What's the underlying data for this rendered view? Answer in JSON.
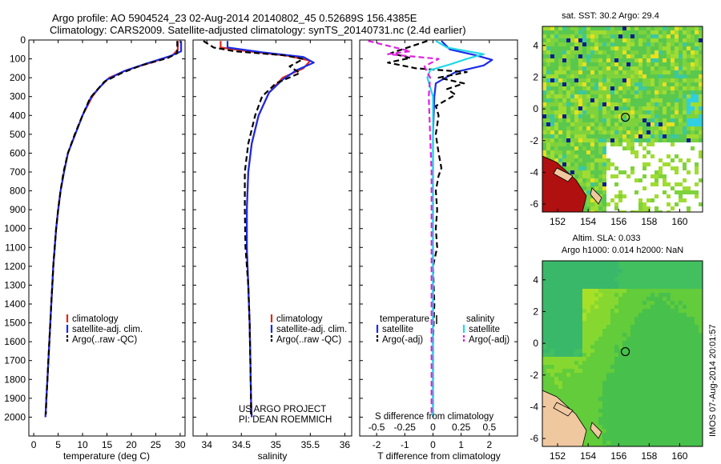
{
  "title": {
    "line1": "Argo profile: AO 5904524_23 02-Aug-2014 20140802_45 0.52689S 156.4385E",
    "line2": "Climatology: CARS2009. Satellite-adjusted climatology: synTS_20140731.nc (2.4d earlier)"
  },
  "credit": {
    "line1": "US ARGO PROJECT",
    "line2": "PI: DEAN ROEMMICH"
  },
  "stamp": "IMOS 07-Aug-2014 20:01:57",
  "colors": {
    "climatology": "#e0281c",
    "satellite": "#1a2ce8",
    "argo": "#000000",
    "sat_salinity": "#22d8e8",
    "argo_salinity": "#e020e0"
  },
  "chart_data": [
    {
      "type": "line",
      "name": "temperature-profile",
      "xlabel": "temperature (deg C)",
      "ylabel": "",
      "xlim": [
        -1,
        31
      ],
      "ylim": [
        2100,
        0
      ],
      "xticks": [
        0,
        5,
        10,
        15,
        20,
        25,
        30
      ],
      "yticks": [
        0,
        100,
        200,
        300,
        400,
        500,
        600,
        700,
        800,
        900,
        1000,
        1100,
        1200,
        1300,
        1400,
        1500,
        1600,
        1700,
        1800,
        1900,
        2000
      ],
      "legend": {
        "placement": "bottom-center",
        "entries": [
          "climatology",
          "satellite-adj. clim.",
          "Argo(..raw -QC)"
        ]
      },
      "series": [
        {
          "name": "climatology",
          "style": "solid",
          "color_key": "climatology",
          "points": [
            [
              29.5,
              5
            ],
            [
              29.5,
              50
            ],
            [
              28.5,
              80
            ],
            [
              24,
              120
            ],
            [
              19,
              160
            ],
            [
              15.5,
              200
            ],
            [
              13.5,
              250
            ],
            [
              12,
              300
            ],
            [
              10,
              400
            ],
            [
              8.5,
              500
            ],
            [
              7,
              600
            ],
            [
              6.2,
              700
            ],
            [
              5.5,
              800
            ],
            [
              5,
              900
            ],
            [
              4.6,
              1000
            ],
            [
              4.3,
              1100
            ],
            [
              4,
              1200
            ],
            [
              3.8,
              1300
            ],
            [
              3.6,
              1400
            ],
            [
              3.4,
              1500
            ],
            [
              3.2,
              1600
            ],
            [
              3.0,
              1700
            ],
            [
              2.8,
              1800
            ],
            [
              2.6,
              1900
            ],
            [
              2.4,
              2000
            ]
          ]
        },
        {
          "name": "satellite-adj. clim.",
          "style": "solid",
          "color_key": "satellite",
          "points": [
            [
              30.2,
              5
            ],
            [
              30.2,
              60
            ],
            [
              28,
              85
            ],
            [
              23,
              125
            ],
            [
              18.5,
              165
            ],
            [
              15,
              210
            ],
            [
              13.2,
              260
            ],
            [
              11.8,
              300
            ],
            [
              10,
              400
            ],
            [
              8.5,
              500
            ],
            [
              7,
              600
            ],
            [
              6.2,
              700
            ],
            [
              5.5,
              800
            ],
            [
              5,
              900
            ],
            [
              4.6,
              1000
            ],
            [
              4.3,
              1100
            ],
            [
              4,
              1200
            ],
            [
              3.8,
              1300
            ],
            [
              3.6,
              1400
            ],
            [
              3.4,
              1500
            ],
            [
              3.2,
              1600
            ],
            [
              3.0,
              1700
            ],
            [
              2.8,
              1800
            ],
            [
              2.6,
              1900
            ],
            [
              2.4,
              2000
            ]
          ]
        },
        {
          "name": "Argo(..raw -QC)",
          "style": "dashed",
          "color_key": "argo",
          "points": [
            [
              29.4,
              5
            ],
            [
              29.4,
              70
            ],
            [
              27.5,
              95
            ],
            [
              22,
              135
            ],
            [
              18,
              175
            ],
            [
              14.5,
              220
            ],
            [
              12.8,
              270
            ],
            [
              11.5,
              310
            ],
            [
              10,
              400
            ],
            [
              8.4,
              500
            ],
            [
              7,
              600
            ],
            [
              6.1,
              700
            ],
            [
              5.5,
              800
            ],
            [
              5,
              900
            ],
            [
              4.6,
              1000
            ],
            [
              4.3,
              1100
            ],
            [
              4,
              1200
            ],
            [
              3.8,
              1300
            ],
            [
              3.6,
              1400
            ],
            [
              3.4,
              1500
            ],
            [
              3.2,
              1600
            ],
            [
              3.0,
              1700
            ],
            [
              2.8,
              1800
            ],
            [
              2.6,
              1900
            ],
            [
              2.5,
              1985
            ]
          ]
        }
      ]
    },
    {
      "type": "line",
      "name": "salinity-profile",
      "xlabel": "salinity",
      "ylabel": "",
      "xlim": [
        33.8,
        36.1
      ],
      "ylim": [
        2100,
        0
      ],
      "xticks": [
        34,
        34.5,
        35,
        35.5,
        36
      ],
      "legend": {
        "placement": "bottom-center",
        "entries": [
          "climatology",
          "satellite-adj. clim.",
          "Argo(..raw -QC)"
        ]
      },
      "series": [
        {
          "name": "climatology",
          "style": "solid",
          "color_key": "climatology",
          "points": [
            [
              34.2,
              5
            ],
            [
              34.2,
              40
            ],
            [
              34.6,
              60
            ],
            [
              35.2,
              85
            ],
            [
              35.5,
              110
            ],
            [
              35.4,
              150
            ],
            [
              35.1,
              200
            ],
            [
              34.9,
              280
            ],
            [
              34.75,
              400
            ],
            [
              34.65,
              550
            ],
            [
              34.6,
              700
            ],
            [
              34.58,
              900
            ],
            [
              34.58,
              1100
            ],
            [
              34.6,
              1300
            ],
            [
              34.62,
              1500
            ],
            [
              34.63,
              1700
            ],
            [
              34.64,
              1900
            ],
            [
              34.65,
              2000
            ]
          ]
        },
        {
          "name": "satellite-adj. clim.",
          "style": "solid",
          "color_key": "satellite",
          "points": [
            [
              34.3,
              5
            ],
            [
              34.3,
              40
            ],
            [
              34.8,
              65
            ],
            [
              35.4,
              90
            ],
            [
              35.55,
              120
            ],
            [
              35.3,
              160
            ],
            [
              35.1,
              210
            ],
            [
              34.9,
              280
            ],
            [
              34.75,
              400
            ],
            [
              34.65,
              550
            ],
            [
              34.6,
              700
            ],
            [
              34.58,
              900
            ],
            [
              34.58,
              1100
            ],
            [
              34.6,
              1300
            ],
            [
              34.62,
              1500
            ],
            [
              34.63,
              1700
            ],
            [
              34.64,
              1900
            ],
            [
              34.65,
              2000
            ]
          ]
        },
        {
          "name": "Argo(..raw -QC)",
          "style": "dashed",
          "color_key": "argo",
          "points": [
            [
              33.95,
              5
            ],
            [
              34.1,
              40
            ],
            [
              34.4,
              60
            ],
            [
              35.1,
              80
            ],
            [
              35.4,
              100
            ],
            [
              35.2,
              140
            ],
            [
              35.35,
              175
            ],
            [
              35.0,
              230
            ],
            [
              34.8,
              300
            ],
            [
              34.7,
              400
            ],
            [
              34.6,
              550
            ],
            [
              34.55,
              700
            ],
            [
              34.55,
              900
            ],
            [
              34.56,
              1100
            ],
            [
              34.6,
              1300
            ],
            [
              34.62,
              1500
            ],
            [
              34.63,
              1700
            ],
            [
              34.64,
              1900
            ],
            [
              34.64,
              1985
            ]
          ]
        }
      ]
    },
    {
      "type": "line",
      "name": "difference-profile",
      "xlabel": "T difference from climatology",
      "xlabel_top": "S difference from climatology",
      "xlim": [
        -2.6,
        3.0
      ],
      "ylim": [
        2100,
        0
      ],
      "xticks": [
        -2,
        -1,
        0,
        1,
        2
      ],
      "xticks_top": [
        "-0.5",
        "-0.25",
        "0",
        "0.25",
        "0.5"
      ],
      "xticks_top_values": [
        -2,
        -1,
        0,
        1,
        2
      ],
      "legend": {
        "placement": "bottom-center",
        "headers": [
          "temperature",
          "salinity"
        ],
        "entries": [
          "satellite",
          "Argo(-adj)",
          "satellite",
          "Argo(-adj)"
        ]
      },
      "series": [
        {
          "name": "satellite",
          "group": "temperature",
          "style": "solid",
          "color_key": "satellite",
          "points": [
            [
              0.3,
              5
            ],
            [
              0.6,
              50
            ],
            [
              1.5,
              80
            ],
            [
              2.1,
              105
            ],
            [
              1.8,
              135
            ],
            [
              0.8,
              170
            ],
            [
              0.1,
              230
            ],
            [
              0.05,
              300
            ],
            [
              0,
              500
            ],
            [
              0,
              800
            ],
            [
              0,
              1200
            ],
            [
              0,
              1600
            ],
            [
              0,
              2000
            ]
          ]
        },
        {
          "name": "Argo(-adj)",
          "group": "temperature",
          "style": "dashed",
          "color_key": "argo",
          "points": [
            [
              -0.2,
              5
            ],
            [
              -1.5,
              70
            ],
            [
              -0.8,
              95
            ],
            [
              -1.6,
              120
            ],
            [
              -0.6,
              150
            ],
            [
              1.2,
              170
            ],
            [
              0.2,
              200
            ],
            [
              1.1,
              230
            ],
            [
              0.5,
              260
            ],
            [
              0.8,
              290
            ],
            [
              0.1,
              350
            ],
            [
              0.2,
              400
            ],
            [
              0.1,
              500
            ],
            [
              0.2,
              600
            ],
            [
              0.3,
              680
            ],
            [
              0.2,
              720
            ],
            [
              0.1,
              800
            ],
            [
              0.15,
              900
            ],
            [
              0.1,
              1000
            ],
            [
              0.15,
              1100
            ],
            [
              0,
              1200
            ],
            [
              0.05,
              1400
            ],
            [
              0,
              1600
            ],
            [
              0,
              1800
            ],
            [
              0,
              1985
            ]
          ]
        },
        {
          "name": "satellite",
          "group": "salinity",
          "style": "solid",
          "color_key": "sat_salinity",
          "points": [
            [
              0.1,
              5
            ],
            [
              0.5,
              40
            ],
            [
              1.8,
              75
            ],
            [
              1.2,
              100
            ],
            [
              0.6,
              130
            ],
            [
              -0.1,
              160
            ],
            [
              -0.2,
              200
            ],
            [
              0,
              300
            ],
            [
              0,
              500
            ],
            [
              0,
              800
            ],
            [
              0,
              1200
            ],
            [
              0,
              1600
            ],
            [
              0,
              2000
            ]
          ]
        },
        {
          "name": "Argo(-adj)",
          "group": "salinity",
          "style": "dashed",
          "color_key": "argo_salinity",
          "points": [
            [
              -2.3,
              5
            ],
            [
              -0.8,
              60
            ],
            [
              -1.6,
              75
            ],
            [
              0.2,
              100
            ],
            [
              -0.3,
              140
            ],
            [
              -0.1,
              200
            ],
            [
              -0.15,
              300
            ],
            [
              -0.1,
              500
            ],
            [
              -0.05,
              700
            ],
            [
              -0.05,
              1000
            ],
            [
              -0.05,
              1400
            ],
            [
              -0.05,
              1800
            ],
            [
              -0.05,
              1985
            ]
          ]
        }
      ]
    },
    {
      "type": "heatmap",
      "name": "sst-map",
      "title": "sat. SST: 30.2  Argo: 29.4",
      "xlim": [
        151,
        161.5
      ],
      "ylim": [
        -6.5,
        5.2
      ],
      "xticks": [
        152,
        154,
        156,
        158,
        160
      ],
      "yticks": [
        -6,
        -4,
        -2,
        0,
        2,
        4
      ],
      "marker": {
        "lon": 156.4385,
        "lat": -0.52689
      }
    },
    {
      "type": "heatmap",
      "name": "sla-map",
      "title_line1": "Altim. SLA: 0.033",
      "title_line2": "Argo h1000: 0.014 h2000: NaN",
      "xlim": [
        151,
        161.5
      ],
      "ylim": [
        -6.5,
        5.2
      ],
      "xticks": [
        152,
        154,
        156,
        158,
        160
      ],
      "yticks": [
        -6,
        -4,
        -2,
        0,
        2,
        4
      ],
      "marker": {
        "lon": 156.4385,
        "lat": -0.52689
      }
    }
  ]
}
